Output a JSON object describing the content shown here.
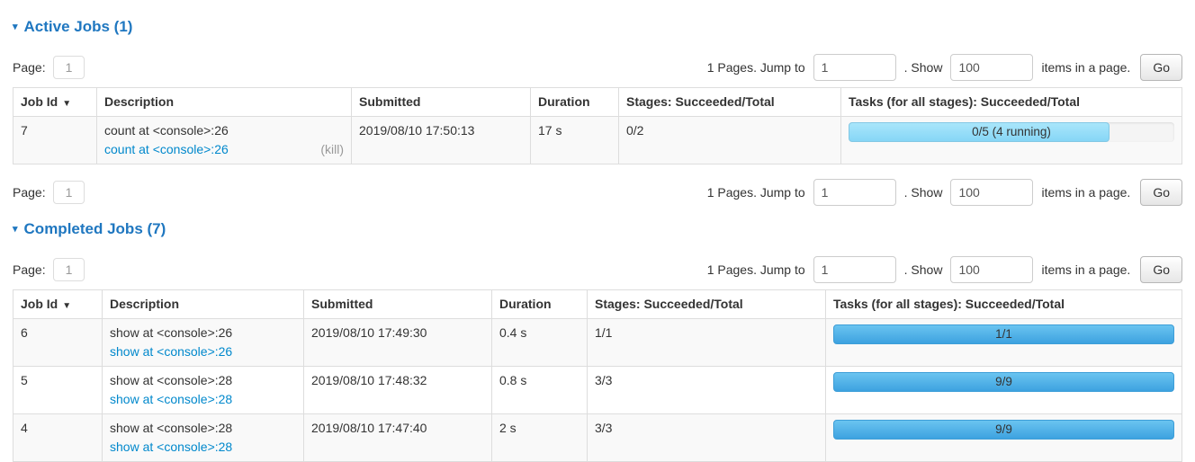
{
  "accent_colors": {
    "section_title": "#1f77c0",
    "link": "#0088cc",
    "running_bar": "#8edcf9",
    "completed_bar_top": "#6ac4f0",
    "completed_bar_bottom": "#3da2e0"
  },
  "pagination": {
    "page_label": "Page:",
    "page_value": "1",
    "total_pages_text": "1 Pages. Jump to",
    "jump_value": "1",
    "show_text": ". Show",
    "show_value": "100",
    "items_text": "items in a page.",
    "go_label": "Go"
  },
  "active_jobs": {
    "title": "Active Jobs (1)",
    "collapse_icon": "▾",
    "sort_icon": "▼",
    "columns": [
      "Job Id",
      "Description",
      "Submitted",
      "Duration",
      "Stages: Succeeded/Total",
      "Tasks (for all stages): Succeeded/Total"
    ],
    "rows": [
      {
        "job_id": "7",
        "description": "count at <console>:26",
        "description_link": "count at <console>:26",
        "kill_label": "(kill)",
        "submitted": "2019/08/10 17:50:13",
        "duration": "17 s",
        "stages": "0/2",
        "tasks_label": "0/5 (4 running)",
        "tasks_percent": 80
      }
    ]
  },
  "completed_jobs": {
    "title": "Completed Jobs (7)",
    "collapse_icon": "▾",
    "sort_icon": "▼",
    "columns": [
      "Job Id",
      "Description",
      "Submitted",
      "Duration",
      "Stages: Succeeded/Total",
      "Tasks (for all stages): Succeeded/Total"
    ],
    "rows": [
      {
        "job_id": "6",
        "description": "show at <console>:26",
        "description_link": "show at <console>:26",
        "submitted": "2019/08/10 17:49:30",
        "duration": "0.4 s",
        "stages": "1/1",
        "tasks_label": "1/1",
        "tasks_percent": 100
      },
      {
        "job_id": "5",
        "description": "show at <console>:28",
        "description_link": "show at <console>:28",
        "submitted": "2019/08/10 17:48:32",
        "duration": "0.8 s",
        "stages": "3/3",
        "tasks_label": "9/9",
        "tasks_percent": 100
      },
      {
        "job_id": "4",
        "description": "show at <console>:28",
        "description_link": "show at <console>:28",
        "submitted": "2019/08/10 17:47:40",
        "duration": "2 s",
        "stages": "3/3",
        "tasks_label": "9/9",
        "tasks_percent": 100
      }
    ]
  }
}
